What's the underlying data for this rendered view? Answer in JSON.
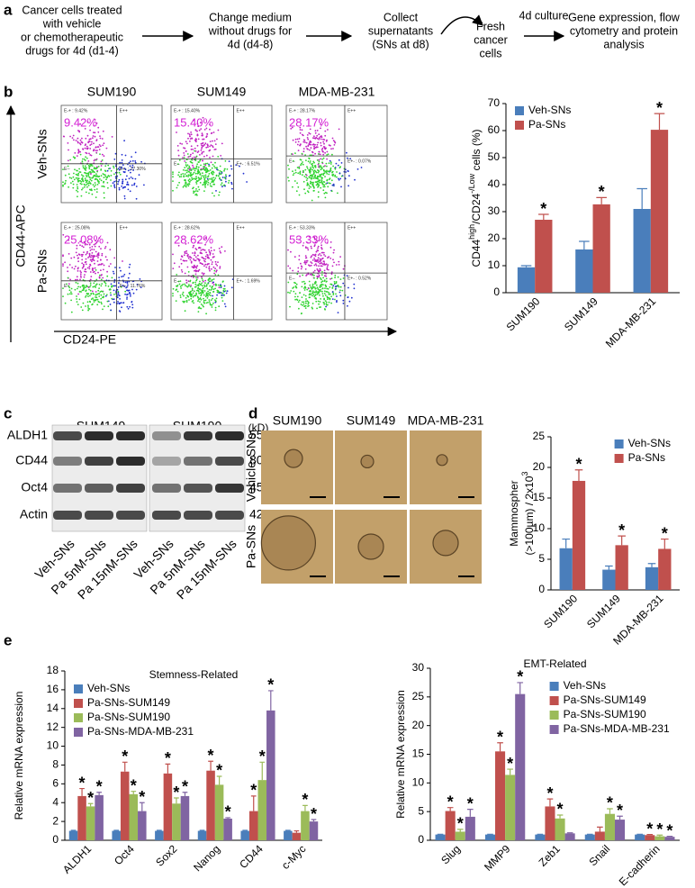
{
  "panel_labels": [
    "a",
    "b",
    "c",
    "d",
    "e"
  ],
  "panel_a": {
    "steps": [
      [
        "Cancer cells treated",
        "with vehicle",
        "or chemotherapeutic",
        "drugs for 4d (d1-4)"
      ],
      [
        "Change medium",
        "without drugs for",
        "4d (d4-8)"
      ],
      [
        "Collect",
        "supernatants",
        "(SNs at d8)"
      ],
      [
        "Fresh",
        "cancer",
        "cells"
      ],
      [
        "Gene expression, flow",
        "cytometry and protein",
        "analysis"
      ]
    ],
    "arrow_label": "4d culture"
  },
  "panel_b": {
    "columns": [
      "SUM190",
      "SUM149",
      "MDA-MB-231"
    ],
    "rows": [
      "Veh-SNs",
      "Pa-SNs"
    ],
    "y_axis": "CD44-APC",
    "x_axis": "CD24-PE",
    "plots": [
      [
        {
          "big": "9.42%",
          "ul": "E-+ : 9.42%",
          "ur": "E++",
          "ll": "E--",
          "lr": "E+- : 17.30%"
        },
        {
          "big": "15.40%",
          "ul": "E-+ : 15.40%",
          "ur": "E++",
          "ll": "E--",
          "lr": "E+- : 6.51%"
        },
        {
          "big": "28.17%",
          "ul": "E-+ : 28.17%",
          "ur": "E++",
          "ll": "E--",
          "lr": "E+- : 0.07%"
        }
      ],
      [
        {
          "big": "25.08%",
          "ul": "E-+ : 25.08%",
          "ur": "E++",
          "ll": "E--",
          "lr": "E+- : 11.76%"
        },
        {
          "big": "28.62%",
          "ul": "E-+ : 28.62%",
          "ur": "E++",
          "ll": "E--",
          "lr": "E+- : 1.69%"
        },
        {
          "big": "53.33%",
          "ul": "E-+ : 53.33%",
          "ur": "E++",
          "ll": "E--",
          "lr": "E+- : 0.52%"
        }
      ]
    ]
  },
  "panel_c": {
    "cell_lines": [
      "SUM149",
      "SUM190"
    ],
    "unit": "(kD)",
    "proteins": [
      "ALDH1",
      "CD44",
      "Oct4",
      "Actin"
    ],
    "sizes": [
      "55",
      "80",
      "45",
      "42"
    ],
    "lanes": [
      "Veh-SNs",
      "Pa 5nM-SNs",
      "Pa 15nM-SNs",
      "Veh-SNs",
      "Pa 5nM-SNs",
      "Pa 15nM-SNs"
    ]
  },
  "panel_d": {
    "columns": [
      "SUM190",
      "SUM149",
      "MDA-MB-231"
    ],
    "rows": [
      "Vehicle-SNs",
      "Pa-SNs"
    ]
  },
  "chart_data": [
    {
      "type": "bar",
      "y_label": [
        [
          "CD44",
          "high",
          "/CD24",
          "-/Low",
          " cells (%)"
        ]
      ],
      "categories": [
        "SUM190",
        "SUM149",
        "MDA-MB-231"
      ],
      "series": [
        {
          "name": "Veh-SNs",
          "color": "#4a7ebb",
          "values": [
            9.4,
            16,
            31
          ],
          "errors": [
            0.6,
            3,
            7.5
          ],
          "annotations": [
            null,
            null,
            null
          ]
        },
        {
          "name": "Pa-SNs",
          "color": "#c0504d",
          "values": [
            27,
            32.7,
            60.3
          ],
          "errors": [
            2,
            2.5,
            6
          ],
          "annotations": [
            "*",
            "*",
            "*"
          ]
        }
      ],
      "ylim": [
        0,
        70
      ],
      "yticks": [
        0,
        10,
        20,
        30,
        40,
        50,
        60,
        70
      ],
      "legend": "upper left"
    },
    {
      "type": "bar",
      "y_label": [
        [
          "Mammospher"
        ],
        [
          "(>100µm) / 2x10",
          "3"
        ]
      ],
      "categories": [
        "SUM190",
        "SUM149",
        "MDA-MB-231"
      ],
      "series": [
        {
          "name": "Veh-SNs",
          "color": "#4a7ebb",
          "values": [
            6.8,
            3.3,
            3.7
          ],
          "errors": [
            1.5,
            0.6,
            0.6
          ],
          "annotations": [
            null,
            null,
            null
          ]
        },
        {
          "name": "Pa-SNs",
          "color": "#c0504d",
          "values": [
            17.8,
            7.3,
            6.7
          ],
          "errors": [
            1.8,
            1.5,
            1.6
          ],
          "annotations": [
            "*",
            "*",
            "*"
          ]
        }
      ],
      "ylim": [
        0,
        25
      ],
      "yticks": [
        0,
        5,
        10,
        15,
        20,
        25
      ],
      "legend": "upper right"
    },
    {
      "type": "bar",
      "title": "Stemness-Related",
      "y_label": [
        [
          "Relative mRNA expression"
        ]
      ],
      "categories": [
        "ALDH1",
        "Oct4",
        "Sox2",
        "Nanog",
        "CD44",
        "c-Myc"
      ],
      "series": [
        {
          "name": "Veh-SNs",
          "color": "#4a7ebb",
          "values": [
            1,
            1,
            1,
            1,
            1,
            1
          ],
          "errors": [
            0.05,
            0.05,
            0.05,
            0.05,
            0.05,
            0.05
          ],
          "annotations": [
            null,
            null,
            null,
            null,
            null,
            null
          ]
        },
        {
          "name": "Pa-SNs-SUM149",
          "color": "#c0504d",
          "values": [
            4.7,
            7.3,
            7.1,
            7.4,
            3.1,
            0.8
          ],
          "errors": [
            0.8,
            1,
            1,
            1,
            1.6,
            0.2
          ],
          "annotations": [
            "*",
            "*",
            "*",
            "*",
            "*",
            null
          ]
        },
        {
          "name": "Pa-SNs-SUM190",
          "color": "#9bbb59",
          "values": [
            3.6,
            4.9,
            3.9,
            5.9,
            6.4,
            3.1
          ],
          "errors": [
            0.3,
            0.3,
            0.6,
            0.9,
            1.9,
            0.6
          ],
          "annotations": [
            "*",
            "*",
            "*",
            "*",
            "*",
            "*"
          ]
        },
        {
          "name": "Pa-SNs-MDA-MB-231",
          "color": "#8064a2",
          "values": [
            4.8,
            3.1,
            4.7,
            2.3,
            13.8,
            2.0
          ],
          "errors": [
            0.3,
            0.9,
            0.4,
            0.1,
            2.1,
            0.2
          ],
          "annotations": [
            "*",
            "*",
            "*",
            "*",
            "*",
            "*"
          ]
        }
      ],
      "ylim": [
        0,
        18
      ],
      "yticks": [
        0,
        2,
        4,
        6,
        8,
        10,
        12,
        14,
        16,
        18
      ],
      "legend": "upper left"
    },
    {
      "type": "bar",
      "title": "EMT-Related",
      "y_label": [
        [
          "Relative mRNA expression"
        ]
      ],
      "categories": [
        "Slug",
        "MMP9",
        "Zeb1",
        "Snail",
        "E-cadherin"
      ],
      "series": [
        {
          "name": "Veh-SNs",
          "color": "#4a7ebb",
          "values": [
            1,
            1,
            1,
            1,
            1
          ],
          "errors": [
            0.05,
            0.05,
            0.05,
            0.05,
            0.05
          ],
          "annotations": [
            null,
            null,
            null,
            null,
            null
          ]
        },
        {
          "name": "Pa-SNs-SUM149",
          "color": "#c0504d",
          "values": [
            5.1,
            15.5,
            5.9,
            1.5,
            0.9
          ],
          "errors": [
            0.6,
            1.5,
            1.3,
            0.8,
            0.1
          ],
          "annotations": [
            "*",
            "*",
            "*",
            null,
            "*"
          ]
        },
        {
          "name": "Pa-SNs-SUM190",
          "color": "#9bbb59",
          "values": [
            1.5,
            11.4,
            3.8,
            4.6,
            0.7
          ],
          "errors": [
            0.4,
            1,
            0.6,
            0.9,
            0.2
          ],
          "annotations": [
            "*",
            "*",
            "*",
            "*",
            "*"
          ]
        },
        {
          "name": "Pa-SNs-MDA-MB-231",
          "color": "#8064a2",
          "values": [
            4.1,
            25.5,
            1.2,
            3.6,
            0.6
          ],
          "errors": [
            1.3,
            2,
            0.1,
            0.6,
            0.1
          ],
          "annotations": [
            "*",
            "*",
            null,
            "*",
            "*"
          ]
        }
      ],
      "ylim": [
        0,
        30
      ],
      "yticks": [
        0,
        5,
        10,
        15,
        20,
        25,
        30
      ],
      "legend": "upper right"
    }
  ]
}
